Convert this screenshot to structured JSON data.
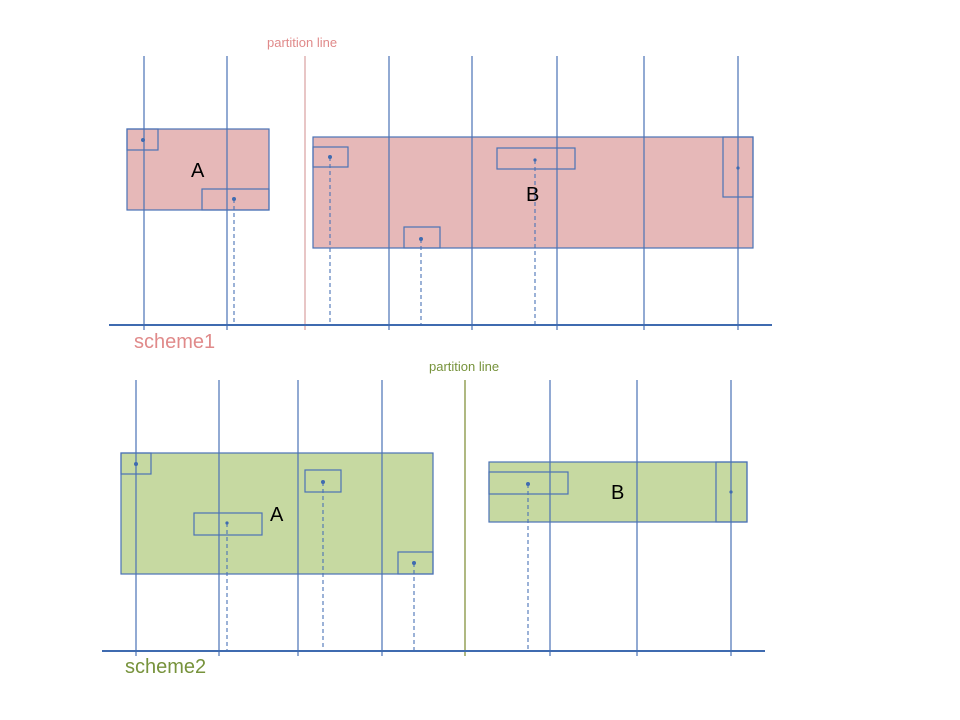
{
  "colors": {
    "line_blue": "#4a72b6",
    "axis_blue": "#3f6bb0",
    "scheme1_fill": "#e6b8b8",
    "scheme1_text": "#e08a8a",
    "scheme1_partition": "#d9a0a0",
    "scheme2_fill": "#c6d9a1",
    "scheme2_text": "#77933c",
    "scheme2_partition": "#7a8a2e",
    "label_text": "#000000"
  },
  "scheme1": {
    "label": "scheme1",
    "partition_label": "partition line",
    "region_a_label": "A",
    "region_b_label": "B"
  },
  "scheme2": {
    "label": "scheme2",
    "partition_label": "partition line",
    "region_a_label": "A",
    "region_b_label": "B"
  }
}
